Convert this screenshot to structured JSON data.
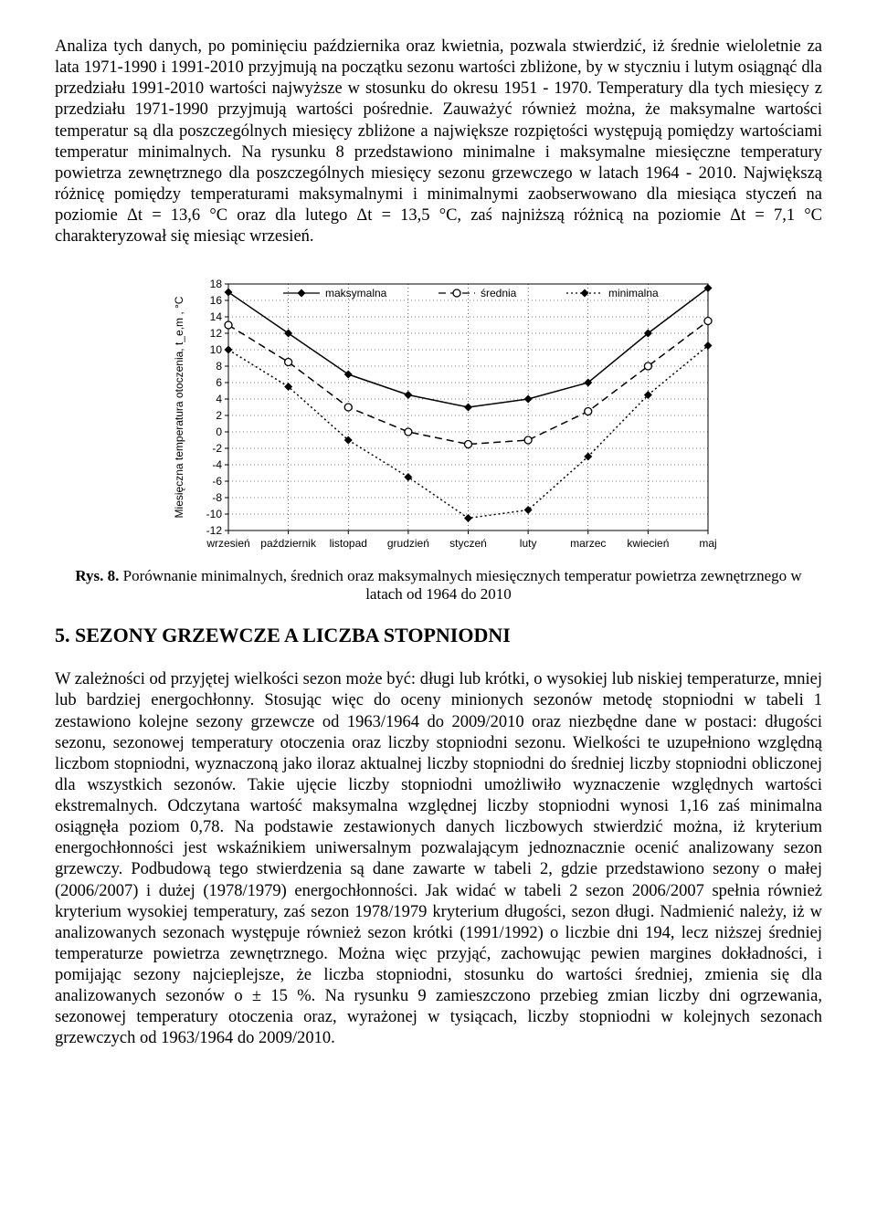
{
  "paragraph1": "Analiza tych danych, po pominięciu października oraz kwietnia, pozwala stwierdzić, iż średnie wieloletnie za lata 1971-1990 i 1991-2010 przyjmują na początku sezonu wartości zbliżone, by w styczniu i lutym osiągnąć dla przedziału 1991-2010 wartości najwyższe w stosunku do okresu 1951 - 1970. Temperatury dla tych miesięcy z przedziału 1971-1990 przyjmują wartości pośrednie. Zauważyć również można, że maksymalne wartości temperatur są dla poszczególnych miesięcy zbliżone  a największe rozpiętości występują pomiędzy wartościami temperatur minimalnych. Na rysunku 8 przedstawiono minimalne i maksymalne miesięczne temperatury powietrza zewnętrznego dla poszczególnych miesięcy sezonu grzewczego w latach 1964 - 2010. Największą różnicę pomiędzy temperaturami maksymalnymi i minimalnymi zaobserwowano dla miesiąca styczeń na poziomie Δt = 13,6 °C oraz dla lutego Δt = 13,5 °C, zaś najniższą różnicą na poziomie Δt = 7,1 °C charakteryzował się miesiąc wrzesień.",
  "caption_bold": "Rys. 8.",
  "caption_rest": " Porównanie minimalnych, średnich  oraz maksymalnych miesięcznych temperatur  powietrza zewnętrznego w latach od 1964 do 2010",
  "section_title": "5. SEZONY GRZEWCZE  A LICZBA STOPNIODNI",
  "paragraph2": "W zależności od przyjętej wielkości sezon może być: długi lub krótki, o wysokiej lub niskiej temperaturze, mniej lub bardziej energochłonny. Stosując więc do oceny minionych sezonów metodę stopniodni w tabeli 1 zestawiono kolejne sezony grzewcze od 1963/1964 do 2009/2010 oraz niezbędne dane w postaci: długości sezonu, sezonowej temperatury otoczenia oraz liczby stopniodni sezonu. Wielkości te uzupełniono względną liczbom stopniodni, wyznaczoną jako iloraz aktualnej liczby stopniodni do średniej liczby stopniodni obliczonej dla wszystkich sezonów. Takie ujęcie liczby stopniodni umożliwiło wyznaczenie względnych wartości ekstremalnych. Odczytana wartość maksymalna względnej liczby stopniodni wynosi 1,16 zaś minimalna osiągnęła poziom 0,78. Na podstawie zestawionych danych liczbowych stwierdzić można, iż kryterium energochłonności jest wskaźnikiem uniwersalnym pozwalającym jednoznacznie ocenić analizowany sezon grzewczy. Podbudową tego stwierdzenia są dane zawarte w tabeli 2, gdzie przedstawiono sezony o małej (2006/2007) i dużej (1978/1979) energochłonności. Jak widać w tabeli 2 sezon 2006/2007 spełnia również kryterium wysokiej temperatury, zaś sezon 1978/1979 kryterium długości, sezon długi. Nadmienić należy, iż w analizowanych sezonach występuje również sezon krótki (1991/1992) o liczbie dni 194, lecz niższej średniej temperaturze powietrza zewnętrznego. Można więc przyjąć, zachowując pewien margines dokładności, i pomijając sezony najcieplejsze, że liczba stopniodni, stosunku do wartości średniej, zmienia się dla analizowanych sezonów o ± 15 %. Na rysunku 9 zamieszczono przebieg zmian liczby dni ogrzewania, sezonowej temperatury otoczenia oraz, wyrażonej w tysiącach, liczby stopniodni w kolejnych sezonach grzewczych od 1963/1964 do 2009/2010.",
  "chart": {
    "type": "line",
    "ylabel": "Miesięczna temperatura otoczenia, t_e,m , °C",
    "ylim": [
      -12,
      18
    ],
    "ytick_step": 2,
    "categories": [
      "wrzesień",
      "październik",
      "listopad",
      "grudzień",
      "styczeń",
      "luty",
      "marzec",
      "kwiecień",
      "maj"
    ],
    "background_color": "#ffffff",
    "grid_color": "#000000",
    "axis_color": "#000000",
    "label_fontsize": 12,
    "legend": {
      "items": [
        {
          "label": "maksymalna",
          "marker": "diamond-filled",
          "dash": "solid"
        },
        {
          "label": "średnia",
          "marker": "circle-open",
          "dash": "dash"
        },
        {
          "label": "minimalna",
          "marker": "diamond-filled",
          "dash": "dot"
        }
      ]
    },
    "series": {
      "maksymalna": {
        "values": [
          17.0,
          12.0,
          7.0,
          4.5,
          3.0,
          4.0,
          6.0,
          12.0,
          17.5
        ],
        "color": "#000000",
        "dash": "solid",
        "marker": "diamond-filled",
        "line_width": 1.5
      },
      "srednia": {
        "values": [
          13.0,
          8.5,
          3.0,
          0.0,
          -1.5,
          -1.0,
          2.5,
          8.0,
          13.5
        ],
        "color": "#000000",
        "dash": "dash",
        "marker": "circle-open",
        "line_width": 1.5
      },
      "minimalna": {
        "values": [
          10.0,
          5.5,
          -1.0,
          -5.5,
          -10.5,
          -9.5,
          -3.0,
          4.5,
          10.5
        ],
        "color": "#000000",
        "dash": "dot",
        "marker": "diamond-filled",
        "line_width": 1.5
      }
    }
  }
}
